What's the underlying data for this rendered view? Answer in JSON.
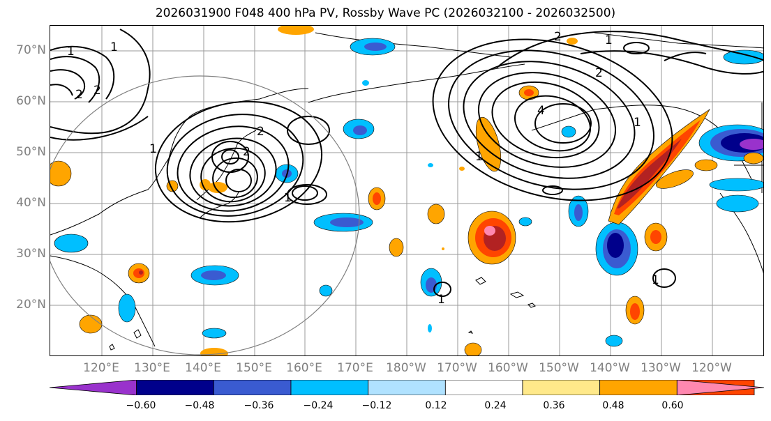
{
  "title": "2026031900 F048 400 hPa PV, Rossby Wave PC (2026032100 - 2026032500)",
  "map": {
    "lat_labels": [
      "70°N",
      "60°N",
      "50°N",
      "40°N",
      "30°N",
      "20°N"
    ],
    "lon_labels": [
      "120°E",
      "130°E",
      "140°E",
      "150°E",
      "160°E",
      "170°E",
      "180°W",
      "170°W",
      "160°W",
      "150°W",
      "140°W",
      "130°W",
      "120°W"
    ],
    "contour_labels": [
      "1",
      "1",
      "2",
      "2",
      "2",
      "2",
      "1",
      "2",
      "4",
      "1",
      "2",
      "1",
      "1",
      "1",
      "1",
      "1"
    ]
  },
  "colorbar": {
    "ticks": [
      "−0.60",
      "−0.48",
      "−0.36",
      "−0.24",
      "−0.12",
      "0.12",
      "0.24",
      "0.36",
      "0.48",
      "0.60"
    ],
    "colors": [
      "#9932cc",
      "#00008b",
      "#3a5bd1",
      "#00bfff",
      "#b0e2ff",
      "#ffffff",
      "#ffe98a",
      "#ffa500",
      "#ff4500",
      "#b22222",
      "#ff88b0"
    ]
  }
}
